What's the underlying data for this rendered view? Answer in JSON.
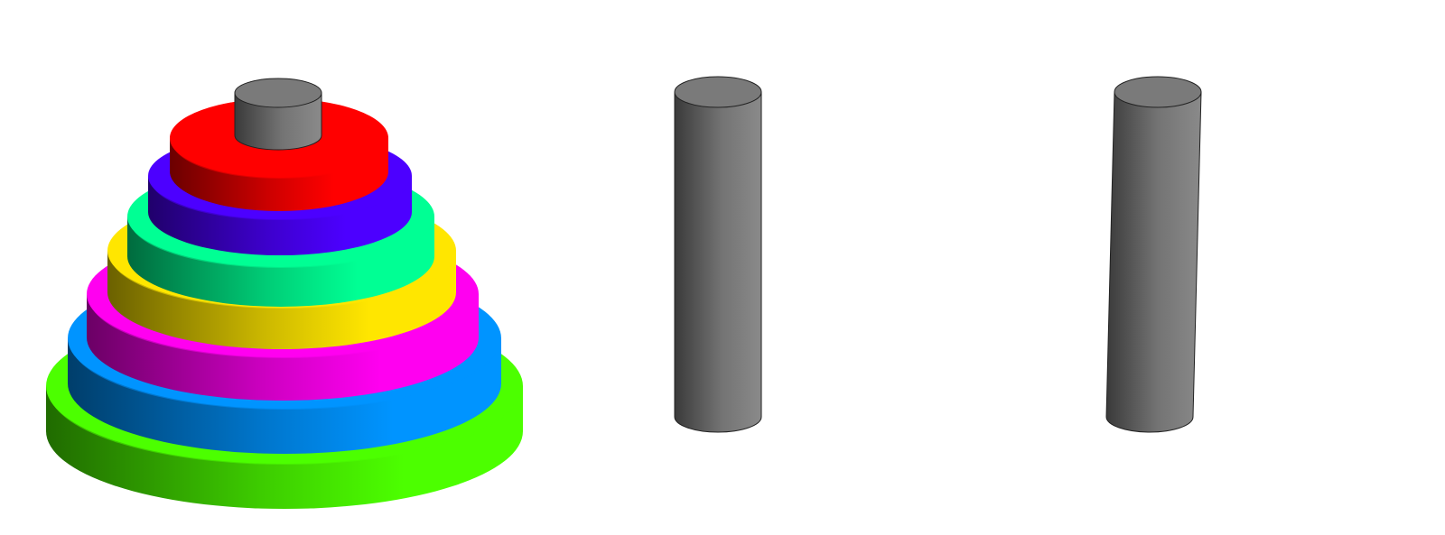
{
  "game": {
    "name": "Tower of Hanoi",
    "disk_count": 7,
    "peg_count": 3,
    "state": {
      "peg-left": [
        "green",
        "blue",
        "magenta",
        "yellow",
        "teal",
        "purple",
        "red"
      ],
      "peg-middle": [],
      "peg-right": []
    }
  },
  "colors": {
    "background": "#ffffff",
    "peg": "#7a7a7a",
    "disks": {
      "green": "#4cff00",
      "blue": "#0094ff",
      "magenta": "#ff00f0",
      "yellow": "#ffe600",
      "teal": "#00ff94",
      "purple": "#4c00ff",
      "red": "#ff0000"
    }
  }
}
